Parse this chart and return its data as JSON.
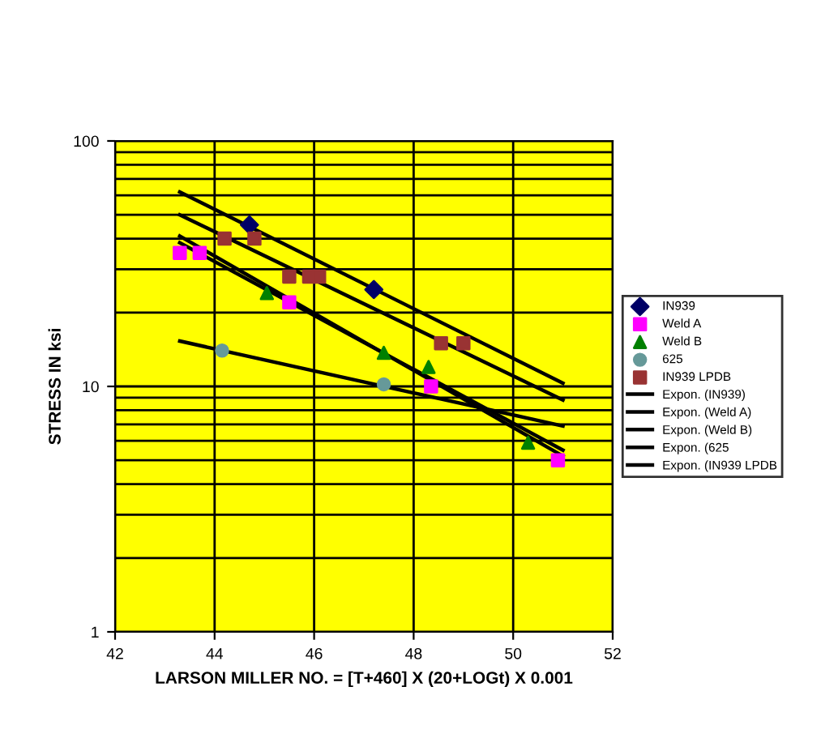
{
  "chart_data": {
    "type": "scatter",
    "xlabel": "LARSON MILLER NO. = [T+460] X (20+LOGt) X 0.001",
    "ylabel": "STRESS IN ksi",
    "xlim": [
      42,
      52
    ],
    "xticks": [
      42,
      44,
      46,
      48,
      50,
      52
    ],
    "ylim": [
      1,
      100
    ],
    "yticks": [
      1,
      10,
      100
    ],
    "log": true,
    "grid": true,
    "legend": "right",
    "series": [
      {
        "name": "IN939",
        "color": "#000066",
        "marker": "diamond",
        "x": [
          44.7,
          47.2
        ],
        "values": [
          45.5,
          24.8
        ]
      },
      {
        "name": "Weld A",
        "color": "#ff00ff",
        "marker": "square",
        "x": [
          43.3,
          43.7,
          45.5,
          48.35,
          50.9
        ],
        "values": [
          35,
          35,
          22,
          10,
          5
        ]
      },
      {
        "name": "Weld B",
        "color": "#008000",
        "marker": "triangle",
        "x": [
          45.05,
          47.4,
          48.3,
          50.3
        ],
        "values": [
          24,
          13.7,
          12,
          5.9
        ]
      },
      {
        "name": "625",
        "color": "#669999",
        "marker": "circle",
        "x": [
          44.15,
          47.4
        ],
        "values": [
          14,
          10.2
        ]
      },
      {
        "name": "IN939 LPDB",
        "color": "#993333",
        "marker": "square",
        "x": [
          44.2,
          44.8,
          45.5,
          45.9,
          46.1,
          48.55,
          49.0
        ],
        "values": [
          40,
          40,
          28,
          28,
          28,
          15,
          15
        ]
      },
      {
        "name": "Expon. (IN939)",
        "type": "line",
        "color": "#000000",
        "x": [
          43.3,
          51
        ],
        "values": [
          62,
          10.3
        ]
      },
      {
        "name": "Expon. (Weld A)",
        "type": "line",
        "color": "#000000",
        "x": [
          43.3,
          51
        ],
        "values": [
          41,
          5.2
        ]
      },
      {
        "name": "Expon. (Weld B)",
        "type": "line",
        "color": "#000000",
        "x": [
          43.3,
          51
        ],
        "values": [
          38.5,
          5.5
        ]
      },
      {
        "name": "Expon. (625",
        "type": "line",
        "color": "#000000",
        "x": [
          43.3,
          51
        ],
        "values": [
          15.3,
          6.9
        ]
      },
      {
        "name": "Expon. (IN939 LPDB",
        "type": "line",
        "color": "#000000",
        "x": [
          43.3,
          51
        ],
        "values": [
          50,
          8.8
        ]
      }
    ]
  }
}
